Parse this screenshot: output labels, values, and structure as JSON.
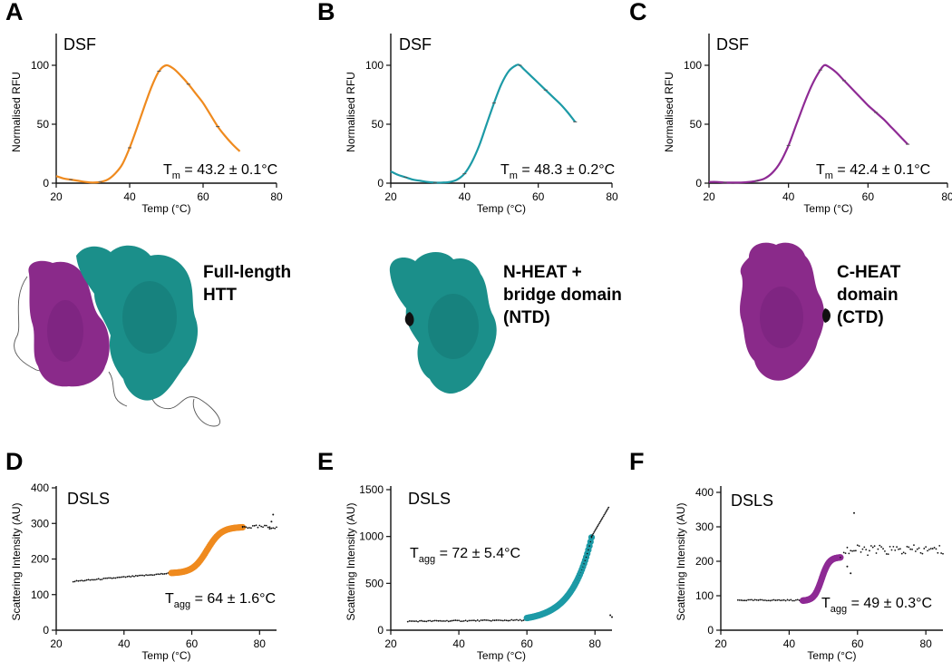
{
  "colors": {
    "orange": "#ef8a1e",
    "teal": "#1c9aa6",
    "purple": "#8e2a94",
    "struct_teal": "#1b8f8a",
    "struct_purple": "#8a2a8a",
    "black": "#111111"
  },
  "structures": [
    {
      "letter_panel": "A",
      "name": "full-length-htt",
      "lines": [
        "Full-length",
        "HTT"
      ]
    },
    {
      "letter_panel": "B",
      "name": "ntd",
      "lines": [
        "N-HEAT +",
        "bridge domain",
        "(NTD)"
      ]
    },
    {
      "letter_panel": "C",
      "name": "ctd",
      "lines": [
        "C-HEAT",
        "domain",
        "(CTD)"
      ]
    }
  ],
  "chart_data": [
    {
      "panel": "A",
      "type": "line",
      "title": "DSF",
      "xlabel": "Temp (°C)",
      "ylabel": "Normalised RFU",
      "xlim": [
        20,
        80
      ],
      "ylim": [
        0,
        100
      ],
      "xticks": [
        20,
        40,
        60,
        80
      ],
      "yticks": [
        0,
        50,
        100
      ],
      "annotation": {
        "main": "T",
        "sub": "m",
        "rest": " = 43.2 ± 0.1°C"
      },
      "color": "orange",
      "series": [
        {
          "name": "Full-length HTT",
          "x": [
            20,
            22,
            24,
            26,
            28,
            30,
            32,
            34,
            36,
            38,
            40,
            42,
            44,
            46,
            48,
            50,
            52,
            54,
            56,
            58,
            60,
            62,
            64,
            66,
            68,
            70
          ],
          "y": [
            6,
            4,
            3,
            2,
            1,
            0.5,
            1,
            3,
            8,
            16,
            30,
            47,
            65,
            82,
            95,
            100,
            97,
            91,
            84,
            76,
            68,
            58,
            48,
            40,
            33,
            27
          ]
        }
      ]
    },
    {
      "panel": "B",
      "type": "line",
      "title": "DSF",
      "xlabel": "Temp (°C)",
      "ylabel": "Normalised RFU",
      "xlim": [
        20,
        80
      ],
      "ylim": [
        0,
        100
      ],
      "xticks": [
        20,
        40,
        60,
        80
      ],
      "yticks": [
        0,
        50,
        100
      ],
      "annotation": {
        "main": "T",
        "sub": "m",
        "rest": " = 48.3 ± 0.2°C"
      },
      "color": "teal",
      "series": [
        {
          "name": "NTD",
          "x": [
            20,
            22,
            24,
            26,
            28,
            30,
            32,
            34,
            36,
            38,
            40,
            42,
            44,
            46,
            48,
            50,
            52,
            54,
            55,
            56,
            58,
            60,
            62,
            64,
            66,
            68,
            70
          ],
          "y": [
            10,
            7,
            5,
            3,
            2,
            1,
            0.5,
            0.5,
            1,
            3,
            8,
            18,
            32,
            50,
            68,
            84,
            95,
            100,
            100,
            97,
            91,
            85,
            79,
            73,
            67,
            60,
            52
          ]
        }
      ]
    },
    {
      "panel": "C",
      "type": "line",
      "title": "DSF",
      "xlabel": "Temp (°C)",
      "ylabel": "Normalised RFU",
      "xlim": [
        20,
        80
      ],
      "ylim": [
        0,
        100
      ],
      "xticks": [
        20,
        40,
        60,
        80
      ],
      "yticks": [
        0,
        50,
        100
      ],
      "annotation": {
        "main": "T",
        "sub": "m",
        "rest": " = 42.4 ± 0.1°C"
      },
      "color": "purple",
      "series": [
        {
          "name": "CTD",
          "x": [
            20,
            22,
            24,
            26,
            28,
            30,
            32,
            34,
            36,
            38,
            40,
            42,
            44,
            46,
            48,
            49,
            50,
            52,
            54,
            56,
            58,
            60,
            62,
            64,
            66,
            68,
            70
          ],
          "y": [
            1,
            1,
            0.5,
            0.5,
            0.5,
            1,
            2,
            4,
            9,
            18,
            32,
            50,
            68,
            84,
            96,
            100,
            99,
            94,
            87,
            80,
            73,
            66,
            60,
            54,
            47,
            40,
            33
          ]
        }
      ]
    },
    {
      "panel": "D",
      "type": "scatter",
      "title": "DSLS",
      "xlabel": "Temp (°C)",
      "ylabel": "Scattering Intensity (AU)",
      "xlim": [
        20,
        85
      ],
      "ylim": [
        0,
        400
      ],
      "xticks": [
        20,
        40,
        60,
        80
      ],
      "yticks": [
        0,
        100,
        200,
        300,
        400
      ],
      "annotation": {
        "main": "T",
        "sub": "agg",
        "rest": " = 64 ± 1.6°C"
      },
      "color": "orange",
      "transition": {
        "x_start": 54,
        "x_end": 75,
        "y_start": 160,
        "y_end": 290
      },
      "baseline": {
        "x_start": 25,
        "y_start": 137,
        "slope": 0.8
      },
      "plateau_y": 290,
      "x_max": 85,
      "outliers": [
        {
          "x": 84,
          "y": 325
        },
        {
          "x": 83.5,
          "y": 305
        },
        {
          "x": 83,
          "y": 285
        }
      ]
    },
    {
      "panel": "E",
      "type": "scatter",
      "title": "DSLS",
      "xlabel": "Temp (°C)",
      "ylabel": "Scattering Intensity (AU)",
      "xlim": [
        20,
        85
      ],
      "ylim": [
        0,
        1500
      ],
      "xticks": [
        20,
        40,
        60,
        80
      ],
      "yticks": [
        0,
        500,
        1000,
        1500
      ],
      "annotation": {
        "main": "T",
        "sub": "agg",
        "rest": " = 72 ± 5.4°C"
      },
      "color": "teal",
      "transition": {
        "x_start": 60,
        "x_end": 79,
        "y_start": 130,
        "y_end": 990
      },
      "baseline": {
        "x_start": 25,
        "y_start": 95,
        "slope": 0.35
      },
      "tail": {
        "x_start": 79,
        "x_end": 84,
        "y_start": 1000,
        "y_end": 1310
      },
      "outliers": [
        {
          "x": 84.5,
          "y": 160
        },
        {
          "x": 85,
          "y": 140
        }
      ]
    },
    {
      "panel": "F",
      "type": "scatter",
      "title": "DSLS",
      "xlabel": "Temp (°C)",
      "ylabel": "Scattering Intensity (AU)",
      "xlim": [
        20,
        85
      ],
      "ylim": [
        0,
        400
      ],
      "xticks": [
        20,
        40,
        60,
        80
      ],
      "yticks": [
        0,
        100,
        200,
        300,
        400
      ],
      "annotation": {
        "main": "T",
        "sub": "agg",
        "rest": " = 49 ± 0.3°C"
      },
      "color": "purple",
      "transition": {
        "x_start": 44,
        "x_end": 55,
        "y_start": 85,
        "y_end": 212
      },
      "baseline": {
        "x_start": 25,
        "y_start": 87,
        "slope": 0
      },
      "noisy_plateau": {
        "x_start": 56,
        "x_end": 85,
        "y_center": 232
      },
      "outliers": [
        {
          "x": 59,
          "y": 340
        },
        {
          "x": 58,
          "y": 165
        },
        {
          "x": 57,
          "y": 185
        }
      ]
    }
  ]
}
